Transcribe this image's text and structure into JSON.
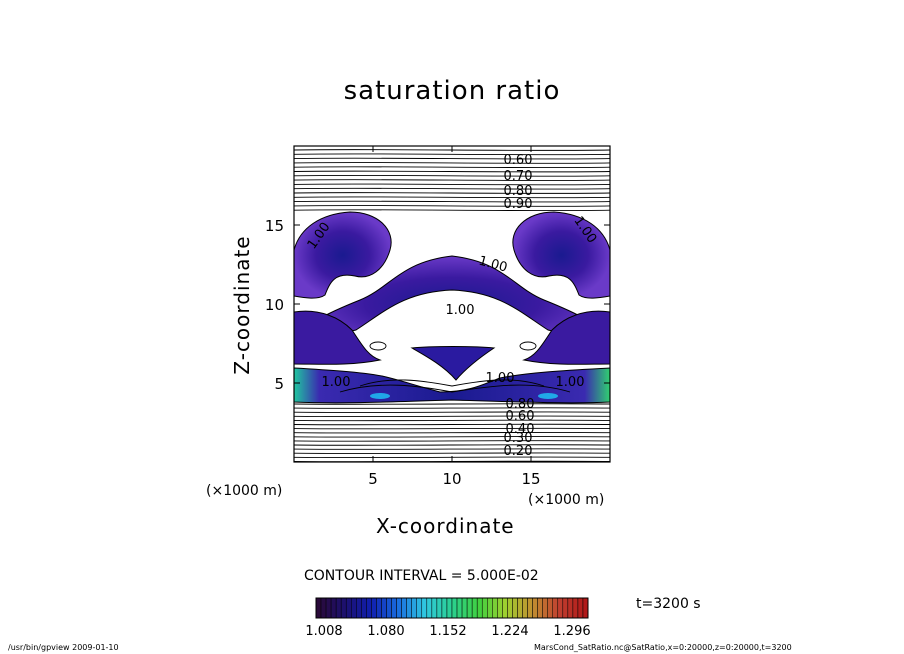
{
  "chart_data": {
    "type": "contour",
    "title": "saturation ratio",
    "xlabel": "X-coordinate",
    "ylabel": "Z-coordinate",
    "x_unit_label": "(×1000 m)",
    "x_unit_label_2": "(×1000 m)",
    "xlim": [
      0,
      20
    ],
    "ylim": [
      0,
      20
    ],
    "x_ticks": [
      5,
      10,
      15
    ],
    "y_ticks": [
      5,
      10,
      15
    ],
    "contour_interval_text": "CONTOUR INTERVAL = 5.000E-02",
    "contour_labels": [
      "0.60",
      "0.70",
      "0.80",
      "0.90",
      "1.00",
      "1.00",
      "1.00",
      "1.00",
      "1.00",
      "1.00",
      "1.00",
      "0.80",
      "0.60",
      "0.40",
      "0.30",
      "0.20"
    ],
    "colorbar": {
      "tick_labels": [
        "1.008",
        "1.080",
        "1.152",
        "1.224",
        "1.296"
      ],
      "colors": [
        "#2a0a3a",
        "#1c1070",
        "#1020b0",
        "#1a6ee0",
        "#30c8e0",
        "#2ad090",
        "#40d040",
        "#a0d030",
        "#c09030",
        "#c04030",
        "#b01818"
      ]
    },
    "time_text": "t=3200 s",
    "footer_left": "/usr/bin/gpview   2009-01-10",
    "footer_right": "MarsCond_SatRatio.nc@SatRatio,x=0:20000,z=0:20000,t=3200"
  }
}
